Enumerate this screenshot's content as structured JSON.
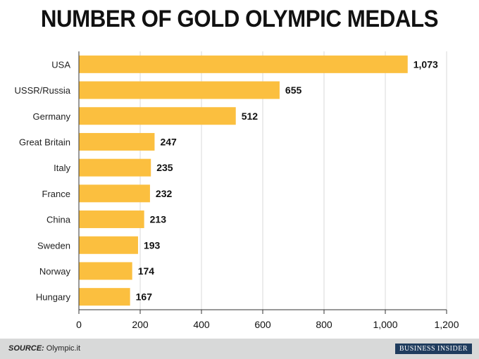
{
  "chart_data": {
    "type": "bar",
    "orientation": "horizontal",
    "title": "NUMBER OF GOLD OLYMPIC MEDALS",
    "categories": [
      "USA",
      "USSR/Russia",
      "Germany",
      "Great Britain",
      "Italy",
      "France",
      "China",
      "Sweden",
      "Norway",
      "Hungary"
    ],
    "values": [
      1073,
      655,
      512,
      247,
      235,
      232,
      213,
      193,
      174,
      167
    ],
    "value_labels": [
      "1,073",
      "655",
      "512",
      "247",
      "235",
      "232",
      "213",
      "193",
      "174",
      "167"
    ],
    "xlim": [
      0,
      1200
    ],
    "xticks": [
      0,
      200,
      400,
      600,
      800,
      1000,
      1200
    ],
    "xtick_labels": [
      "0",
      "200",
      "400",
      "600",
      "800",
      "1,000",
      "1,200"
    ],
    "grid": true,
    "bar_color": "#fbbf3f"
  },
  "footer": {
    "source_prefix": "SOURCE:",
    "source_text": "Olympic.it",
    "brand": "BUSINESS INSIDER"
  }
}
